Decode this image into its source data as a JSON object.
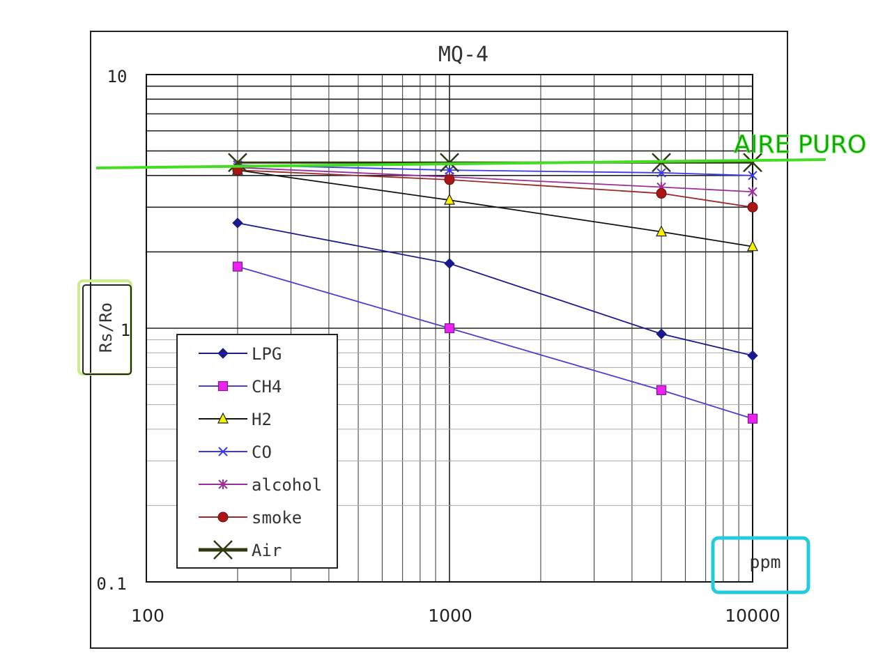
{
  "chart_data": {
    "type": "line",
    "title": "MQ-4",
    "xlabel": "ppm",
    "ylabel": "Rs/Ro",
    "xscale": "log",
    "yscale": "log",
    "xlim": [
      100,
      10000
    ],
    "ylim": [
      0.1,
      10
    ],
    "x_tick_labels": [
      "100",
      "1000",
      "10000"
    ],
    "y_tick_labels": [
      "10",
      "1",
      "0.1"
    ],
    "grid": true,
    "legend_position": "bottom-left",
    "series": [
      {
        "name": "LPG",
        "color": "#1a1a8c",
        "marker": "diamond",
        "x": [
          200,
          1000,
          5000,
          10000
        ],
        "y": [
          2.6,
          1.8,
          0.95,
          0.78
        ]
      },
      {
        "name": "CH4",
        "color": "#4b3fd0",
        "marker": "square",
        "x": [
          200,
          1000,
          5000,
          10000
        ],
        "y": [
          1.75,
          1.0,
          0.57,
          0.44
        ]
      },
      {
        "name": "H2",
        "color": "#111111",
        "marker": "triangle",
        "x": [
          200,
          1000,
          5000,
          10000
        ],
        "y": [
          4.2,
          3.2,
          2.4,
          2.1
        ]
      },
      {
        "name": "CO",
        "color": "#3a3af0",
        "marker": "x",
        "x": [
          200,
          1000,
          5000,
          10000
        ],
        "y": [
          4.4,
          4.2,
          4.1,
          4.0
        ]
      },
      {
        "name": "alcohol",
        "color": "#9a2f9a",
        "marker": "star",
        "x": [
          200,
          1000,
          5000,
          10000
        ],
        "y": [
          4.3,
          3.95,
          3.6,
          3.45
        ]
      },
      {
        "name": "smoke",
        "color": "#9c2a2a",
        "marker": "circle",
        "x": [
          200,
          1000,
          5000,
          10000
        ],
        "y": [
          4.2,
          3.85,
          3.4,
          3.0
        ]
      },
      {
        "name": "Air",
        "color": "#2f3a10",
        "marker": "bigx",
        "x": [
          200,
          1000,
          5000,
          10000
        ],
        "y": [
          4.5,
          4.5,
          4.5,
          4.5
        ]
      }
    ],
    "annotations": {
      "reference_line_label": "AIRE PURO",
      "reference_line_color": "#44dd22",
      "reference_line_y": 4.45,
      "ylabel_highlight_color": "#ccee88",
      "xlabel_highlight_color": "#22ccdd"
    }
  }
}
